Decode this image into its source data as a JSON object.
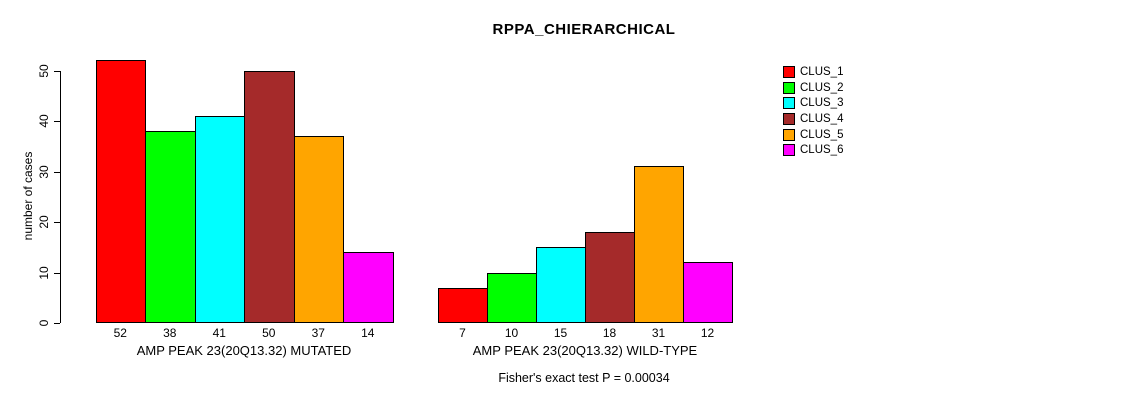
{
  "chart_data": {
    "type": "bar",
    "title": "RPPA_CHIERARCHICAL",
    "ylabel": "number of cases",
    "xlabel": "",
    "ylim": [
      0,
      50
    ],
    "yticks": [
      0,
      10,
      20,
      30,
      40,
      50
    ],
    "grid": false,
    "legend_position": "right",
    "legend": [
      {
        "label": "CLUS_1",
        "color": "#FF0000"
      },
      {
        "label": "CLUS_2",
        "color": "#00FF00"
      },
      {
        "label": "CLUS_3",
        "color": "#00FFFF"
      },
      {
        "label": "CLUS_4",
        "color": "#A52A2A"
      },
      {
        "label": "CLUS_5",
        "color": "#FFA500"
      },
      {
        "label": "CLUS_6",
        "color": "#FF00FF"
      }
    ],
    "categories": [
      "CLUS_1",
      "CLUS_2",
      "CLUS_3",
      "CLUS_4",
      "CLUS_5",
      "CLUS_6"
    ],
    "groups": [
      {
        "label": "AMP PEAK 23(20Q13.32) MUTATED",
        "values": [
          52,
          38,
          41,
          50,
          37,
          14
        ],
        "value_labels": [
          "52",
          "38",
          "41",
          "50",
          "37",
          "14"
        ]
      },
      {
        "label": "AMP PEAK 23(20Q13.32) WILD-TYPE",
        "values": [
          7,
          10,
          15,
          18,
          31,
          12
        ],
        "value_labels": [
          "7",
          "10",
          "15",
          "18",
          "31",
          "12"
        ]
      }
    ],
    "annotation": "Fisher's exact test P = 0.00034"
  }
}
